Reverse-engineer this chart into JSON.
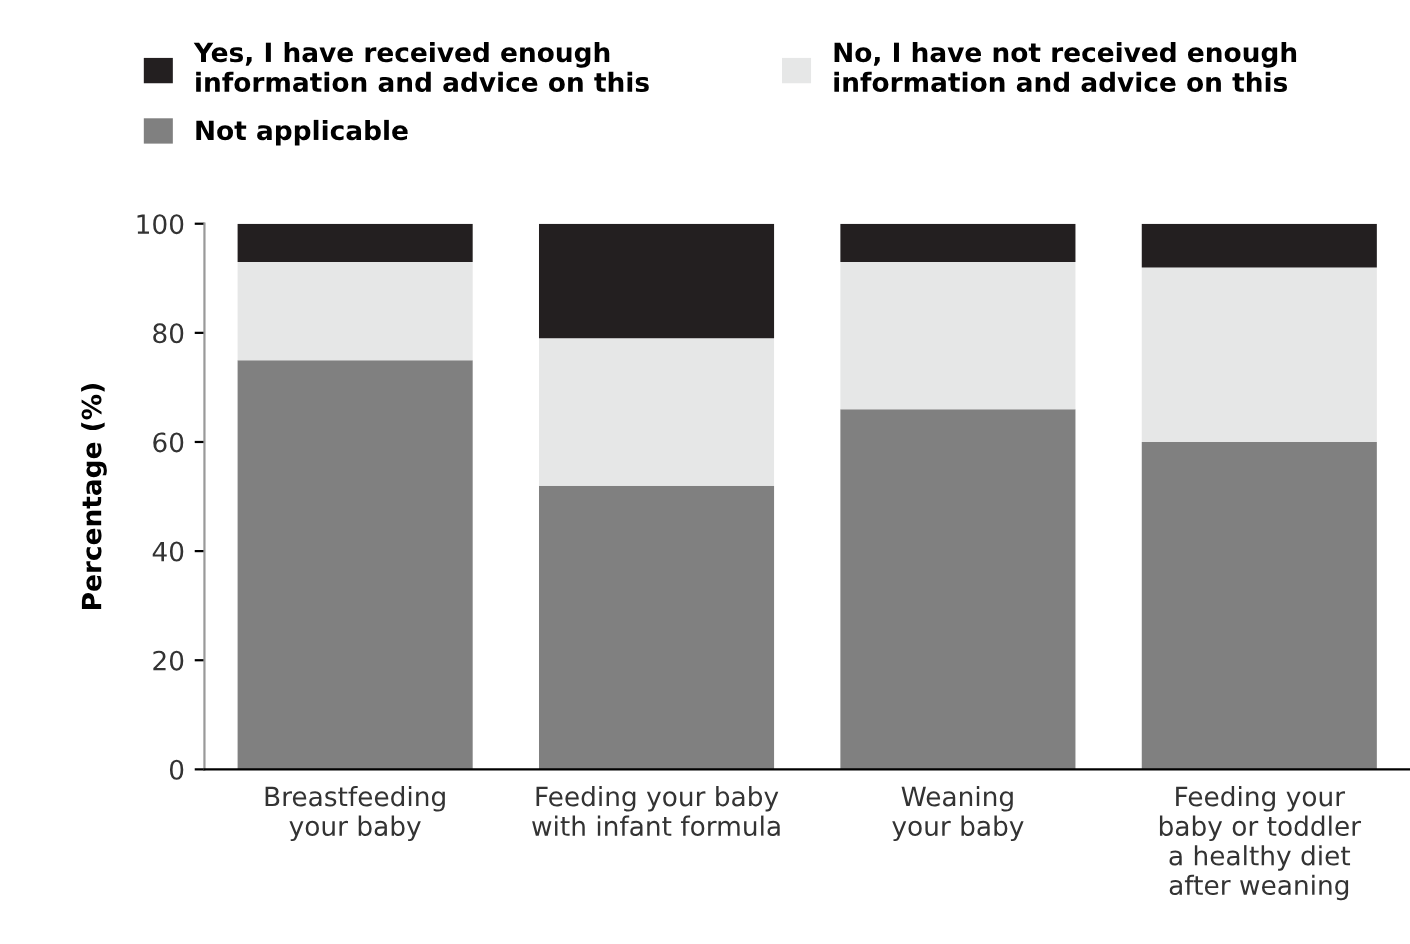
{
  "chart_data": {
    "type": "bar",
    "stacked": true,
    "ylabel": "Percentage (%)",
    "categories": [
      "Breastfeeding\nyour baby",
      "Feeding your baby\nwith infant formula",
      "Weaning\nyour baby",
      "Feeding your\nbaby or toddler\na healthy diet\nafter weaning"
    ],
    "series": [
      {
        "name": "Not applicable",
        "color": "#808080",
        "values": [
          75,
          52,
          66,
          60
        ]
      },
      {
        "name": "No, I have not received enough\ninformation and advice on this",
        "color": "#e6e7e7",
        "values": [
          18,
          27,
          27,
          32
        ]
      },
      {
        "name": "Yes, I have received enough\ninformation and advice on this",
        "color": "#231f20",
        "values": [
          7,
          21,
          7,
          8
        ]
      }
    ],
    "ylim": [
      0,
      100
    ],
    "yticks": [
      0,
      20,
      40,
      60,
      80,
      100
    ],
    "grid": false,
    "legend": "top left"
  }
}
